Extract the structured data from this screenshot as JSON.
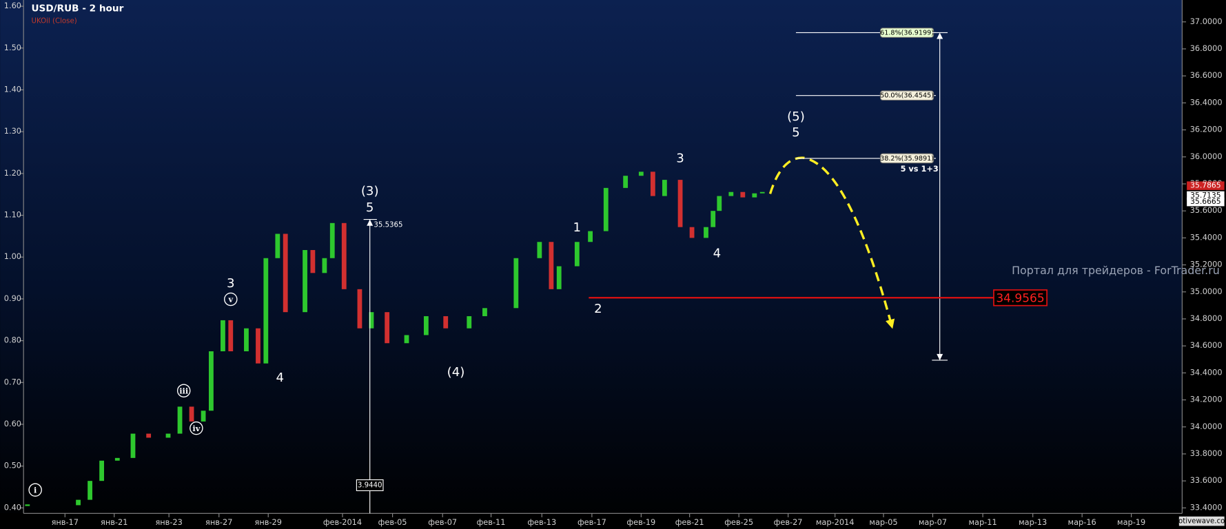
{
  "chart_data": {
    "type": "candlestick",
    "title": "USD/RUB - 2 hour",
    "subtitle": "UKOil (Close)",
    "watermark": "Портал для трейдеров - ForTrader.ru",
    "credit": "motivewave.com",
    "up_color": "#2ec82e",
    "down_color": "#d23030",
    "xlim": [
      0,
      148
    ],
    "xticks": [
      {
        "value": 5.3,
        "label": "янв-17"
      },
      {
        "value": 11.6,
        "label": "янв-21"
      },
      {
        "value": 18.6,
        "label": "янв-23"
      },
      {
        "value": 25,
        "label": "янв-27"
      },
      {
        "value": 31.3,
        "label": "янв-29"
      },
      {
        "value": 40.8,
        "label": "фев-2014"
      },
      {
        "value": 47.2,
        "label": "фев-05"
      },
      {
        "value": 53.6,
        "label": "фев-07"
      },
      {
        "value": 59.8,
        "label": "фев-11"
      },
      {
        "value": 66.3,
        "label": "фев-13"
      },
      {
        "value": 72.7,
        "label": "фев-17"
      },
      {
        "value": 79,
        "label": "фев-19"
      },
      {
        "value": 85.2,
        "label": "фев-21"
      },
      {
        "value": 91.5,
        "label": "фев-25"
      },
      {
        "value": 97.8,
        "label": "фев-27"
      },
      {
        "value": 103.8,
        "label": "мар-2014"
      },
      {
        "value": 110,
        "label": "мар-05"
      },
      {
        "value": 116.3,
        "label": "мар-07"
      },
      {
        "value": 122.7,
        "label": "мар-11"
      },
      {
        "value": 129.1,
        "label": "мар-13"
      },
      {
        "value": 135.4,
        "label": "мар-16"
      },
      {
        "value": 141.7,
        "label": "мар-19"
      }
    ],
    "ylim": [
      33.4,
      37.0
    ],
    "yticks": [
      {
        "value": 33.4,
        "label": "33.4000"
      },
      {
        "value": 33.6,
        "label": "33.6000"
      },
      {
        "value": 33.8,
        "label": "33.8000"
      },
      {
        "value": 34.0,
        "label": "34.0000"
      },
      {
        "value": 34.2,
        "label": "34.2000"
      },
      {
        "value": 34.4,
        "label": "34.4000"
      },
      {
        "value": 34.6,
        "label": "34.6000"
      },
      {
        "value": 34.8,
        "label": "34.8000"
      },
      {
        "value": 35.0,
        "label": "35.0000"
      },
      {
        "value": 35.2,
        "label": "35.2000"
      },
      {
        "value": 35.4,
        "label": "35.4000"
      },
      {
        "value": 35.6,
        "label": "35.6000"
      },
      {
        "value": 35.8,
        "label": "35.8000"
      },
      {
        "value": 36.0,
        "label": "36.0000"
      },
      {
        "value": 36.2,
        "label": "36.2000"
      },
      {
        "value": 36.4,
        "label": "36.4000"
      },
      {
        "value": 36.6,
        "label": "36.6000"
      },
      {
        "value": 36.8,
        "label": "36.8000"
      },
      {
        "value": 37.0,
        "label": "37.0000"
      }
    ],
    "y2lim": [
      0.4,
      1.6
    ],
    "y2ticks": [
      {
        "value": 0.4,
        "label": "0.40"
      },
      {
        "value": 0.5,
        "label": "0.50"
      },
      {
        "value": 0.6,
        "label": "0.60"
      },
      {
        "value": 0.7,
        "label": "0.70"
      },
      {
        "value": 0.8,
        "label": "0.80"
      },
      {
        "value": 0.9,
        "label": "0.90"
      },
      {
        "value": 1.0,
        "label": "1.00"
      },
      {
        "value": 1.1,
        "label": "1.10"
      },
      {
        "value": 1.2,
        "label": "1.20"
      },
      {
        "value": 1.3,
        "label": "1.30"
      },
      {
        "value": 1.4,
        "label": "1.40"
      },
      {
        "value": 1.5,
        "label": "1.50"
      },
      {
        "value": 1.6,
        "label": "1.60"
      }
    ],
    "x": [
      0.5,
      7,
      8.5,
      10,
      12,
      14,
      16,
      18.5,
      20,
      21.5,
      23,
      24,
      25.5,
      26.5,
      28.5,
      30,
      31,
      32.5,
      33.5,
      36,
      37,
      38.5,
      39.5,
      41,
      43,
      44.5,
      46.5,
      49,
      51.5,
      54,
      57,
      59,
      63,
      66,
      67.5,
      68.5,
      70.8,
      72.5,
      74.5,
      77,
      79,
      80.5,
      82,
      84,
      85.5,
      87.3,
      88.2,
      89,
      90.5,
      92,
      93.5,
      94.5
    ],
    "close": [
      33.42,
      33.46,
      33.6,
      33.75,
      33.77,
      33.95,
      33.92,
      33.95,
      34.15,
      34.04,
      34.12,
      34.56,
      34.79,
      34.56,
      34.73,
      34.47,
      35.25,
      35.43,
      34.85,
      35.31,
      35.14,
      35.25,
      35.51,
      35.02,
      34.73,
      34.85,
      34.62,
      34.68,
      34.82,
      34.73,
      34.82,
      34.88,
      35.25,
      35.37,
      35.02,
      35.19,
      35.37,
      35.45,
      35.77,
      35.86,
      35.89,
      35.71,
      35.83,
      35.48,
      35.4,
      35.48,
      35.6,
      35.71,
      35.74,
      35.7,
      35.73,
      35.74
    ],
    "annotations": [
      "(3)",
      "5",
      "3",
      "4",
      "(4)",
      "1",
      "2",
      "3",
      "4",
      "(5)",
      "5",
      "5 vs 1+3"
    ],
    "wave_labels": [
      "i",
      "iii",
      "iv",
      "v"
    ],
    "fib_levels": [
      {
        "value": 36.9199,
        "label": "61.8%(36.9199)"
      },
      {
        "value": 36.4545,
        "label": "50.0%(36.4545)"
      },
      {
        "value": 35.9891,
        "label": "38.2%(35.9891)"
      }
    ],
    "target": 34.9565,
    "peak_label": 35.5365,
    "measure": {
      "value": 3.944,
      "label": "3.9440"
    },
    "price_tags": [
      {
        "value": 35.7865,
        "color": "#cc2222"
      },
      {
        "value": 35.7135,
        "color": "#ffffff"
      },
      {
        "value": 35.6665,
        "color": "#ffffff"
      }
    ]
  }
}
